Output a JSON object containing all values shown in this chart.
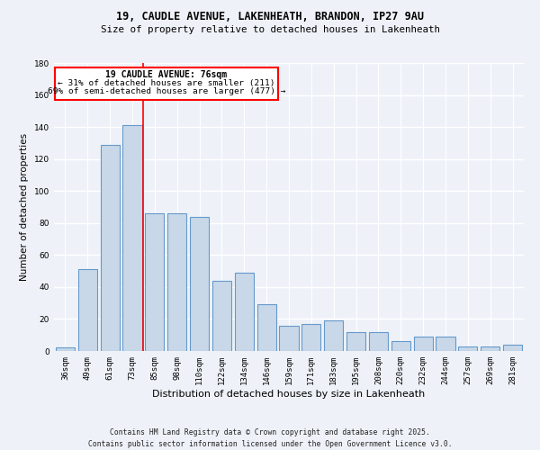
{
  "title1": "19, CAUDLE AVENUE, LAKENHEATH, BRANDON, IP27 9AU",
  "title2": "Size of property relative to detached houses in Lakenheath",
  "xlabel": "Distribution of detached houses by size in Lakenheath",
  "ylabel": "Number of detached properties",
  "categories": [
    "36sqm",
    "49sqm",
    "61sqm",
    "73sqm",
    "85sqm",
    "98sqm",
    "110sqm",
    "122sqm",
    "134sqm",
    "146sqm",
    "159sqm",
    "171sqm",
    "183sqm",
    "195sqm",
    "208sqm",
    "220sqm",
    "232sqm",
    "244sqm",
    "257sqm",
    "269sqm",
    "281sqm"
  ],
  "values": [
    2,
    51,
    129,
    141,
    86,
    86,
    84,
    44,
    49,
    29,
    16,
    17,
    19,
    12,
    12,
    6,
    9,
    9,
    3,
    3,
    4
  ],
  "bar_color": "#c8d8e8",
  "bar_edge_color": "#6699cc",
  "red_line_index": 3.5,
  "annotation_title": "19 CAUDLE AVENUE: 76sqm",
  "annotation_line1": "← 31% of detached houses are smaller (211)",
  "annotation_line2": "69% of semi-detached houses are larger (477) →",
  "footer1": "Contains HM Land Registry data © Crown copyright and database right 2025.",
  "footer2": "Contains public sector information licensed under the Open Government Licence v3.0.",
  "bg_color": "#eef2f8",
  "grid_color": "#ffffff",
  "ylim": [
    0,
    180
  ],
  "yticks": [
    0,
    20,
    40,
    60,
    80,
    100,
    120,
    140,
    160,
    180
  ]
}
